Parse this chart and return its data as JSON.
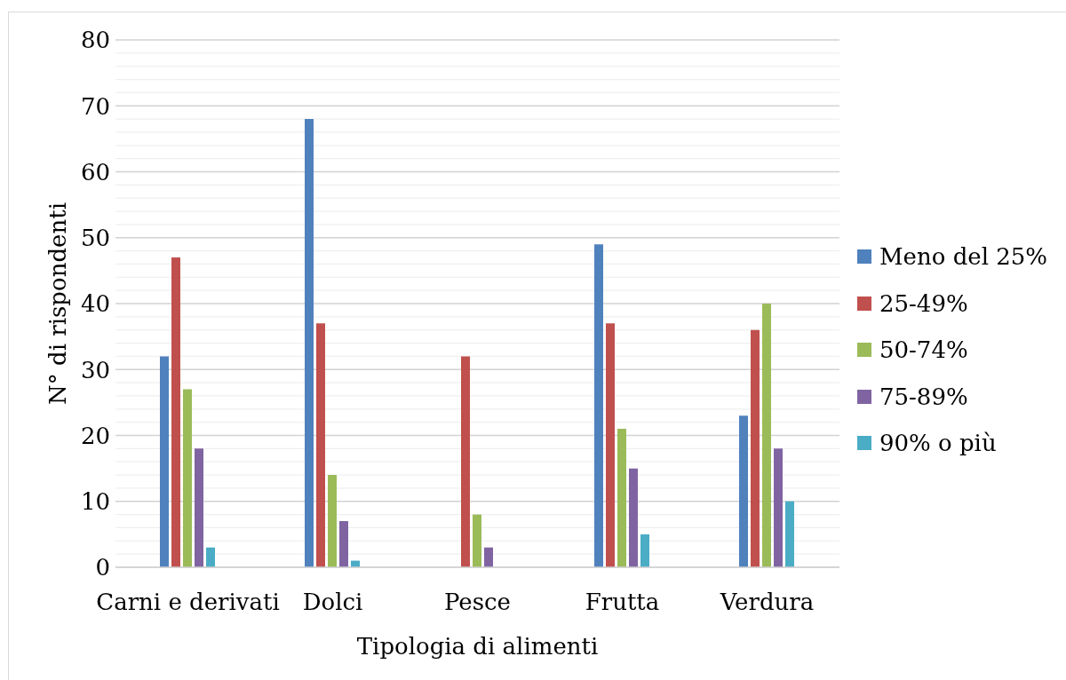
{
  "chart_data": {
    "type": "bar",
    "xlabel": "Tipologia di alimenti",
    "ylabel": "N° di rispondenti",
    "categories": [
      "Carni e derivati",
      "Dolci",
      "Pesce",
      "Frutta",
      "Verdura"
    ],
    "series": [
      {
        "name": "Meno del 25%",
        "color": "#4f81bd",
        "values": [
          32,
          68,
          0,
          49,
          23
        ]
      },
      {
        "name": "25-49%",
        "color": "#c0504d",
        "values": [
          47,
          37,
          32,
          37,
          36
        ]
      },
      {
        "name": "50-74%",
        "color": "#9bbb59",
        "values": [
          27,
          14,
          8,
          21,
          40
        ]
      },
      {
        "name": "75-89%",
        "color": "#8064a2",
        "values": [
          18,
          7,
          3,
          15,
          18
        ]
      },
      {
        "name": "90% o più",
        "color": "#4bacc6",
        "values": [
          3,
          1,
          0,
          5,
          10
        ]
      }
    ],
    "ylim": [
      0,
      80
    ],
    "yticks": [
      0,
      {
        "value": 2,
        "label": null
      },
      {
        "value": 4,
        "label": null
      },
      {
        "value": 6,
        "label": null
      },
      {
        "value": 8,
        "label": null
      },
      10,
      {
        "value": 12,
        "label": null
      },
      {
        "value": 14,
        "label": null
      },
      {
        "value": 16,
        "label": null
      },
      {
        "value": 18,
        "label": null
      },
      20,
      {
        "value": 22,
        "label": null
      },
      {
        "value": 24,
        "label": null
      },
      {
        "value": 26,
        "label": null
      },
      {
        "value": 28,
        "label": null
      },
      30,
      {
        "value": 32,
        "label": null
      },
      {
        "value": 34,
        "label": null
      },
      {
        "value": 36,
        "label": null
      },
      {
        "value": 38,
        "label": null
      },
      40,
      {
        "value": 42,
        "label": null
      },
      {
        "value": 44,
        "label": null
      },
      {
        "value": 46,
        "label": null
      },
      {
        "value": 48,
        "label": null
      },
      50,
      {
        "value": 52,
        "label": null
      },
      {
        "value": 54,
        "label": null
      },
      {
        "value": 56,
        "label": null
      },
      {
        "value": 58,
        "label": null
      },
      60,
      {
        "value": 62,
        "label": null
      },
      {
        "value": 64,
        "label": null
      },
      {
        "value": 66,
        "label": null
      },
      {
        "value": 68,
        "label": null
      },
      70,
      {
        "value": 72,
        "label": null
      },
      {
        "value": 74,
        "label": null
      },
      {
        "value": 76,
        "label": null
      },
      {
        "value": 78,
        "label": null
      },
      80
    ],
    "grid": "y",
    "legend": "right"
  }
}
